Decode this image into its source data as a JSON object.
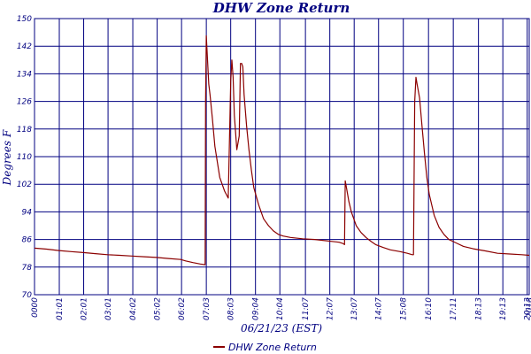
{
  "chart_data": {
    "type": "line",
    "title": "DHW Zone Return",
    "xlabel": "06/21/23 (EST)",
    "ylabel": "Degrees F",
    "ylim": [
      70,
      150
    ],
    "yticks": [
      70,
      78,
      86,
      94,
      102,
      110,
      118,
      126,
      134,
      142,
      150
    ],
    "x_tick_labels": [
      "0000",
      "01:01",
      "02:01",
      "03:01",
      "04:02",
      "05:02",
      "06:02",
      "07:03",
      "08:03",
      "09:04",
      "10:04",
      "11:07",
      "12:07",
      "13:07",
      "14:07",
      "15:08",
      "16:10",
      "17:11",
      "18:13",
      "19:13",
      "20:13",
      "2018"
    ],
    "x_tick_hours": [
      0,
      1.017,
      2.017,
      3.017,
      4.033,
      5.033,
      6.033,
      7.05,
      8.05,
      9.067,
      10.067,
      11.117,
      12.117,
      13.117,
      14.117,
      15.133,
      16.167,
      17.183,
      18.217,
      19.217,
      20.217,
      20.3
    ],
    "grid": true,
    "legend_position": "bottom-center",
    "series": [
      {
        "name": "DHW Zone Return",
        "color": "#8b0000",
        "x_hours": [
          0,
          0.5,
          1,
          1.5,
          2,
          2.5,
          3,
          3.5,
          4,
          4.5,
          5,
          5.5,
          6,
          6.2,
          6.5,
          6.8,
          7.0,
          7.02,
          7.05,
          7.1,
          7.15,
          7.2,
          7.3,
          7.4,
          7.6,
          7.8,
          7.95,
          8.05,
          8.1,
          8.15,
          8.2,
          8.3,
          8.4,
          8.45,
          8.5,
          8.55,
          8.6,
          8.7,
          8.8,
          8.9,
          9.0,
          9.2,
          9.4,
          9.6,
          9.8,
          10.0,
          10.2,
          10.5,
          11.0,
          11.5,
          12.0,
          12.5,
          12.67,
          12.72,
          12.75,
          12.8,
          12.9,
          13.0,
          13.2,
          13.4,
          13.6,
          13.8,
          14.0,
          14.3,
          14.6,
          15.0,
          15.3,
          15.5,
          15.55,
          15.6,
          15.65,
          15.7,
          15.8,
          15.9,
          16.0,
          16.1,
          16.2,
          16.4,
          16.6,
          16.8,
          17.0,
          17.3,
          17.6,
          18.0,
          18.5,
          19.0,
          19.5,
          20.0,
          20.3
        ],
        "values": [
          83.5,
          83.2,
          82.8,
          82.5,
          82.2,
          81.9,
          81.6,
          81.4,
          81.2,
          81.0,
          80.8,
          80.5,
          80.2,
          79.8,
          79.3,
          78.9,
          78.7,
          126,
          145,
          138,
          131,
          128,
          121,
          113,
          104,
          100,
          98,
          132,
          138,
          133,
          122,
          112,
          116,
          137,
          137,
          136,
          128,
          119,
          112,
          106,
          101,
          96,
          92,
          90,
          88.5,
          87.5,
          87,
          86.6,
          86.2,
          86,
          85.6,
          85.2,
          84.8,
          84.5,
          103,
          101,
          97,
          94,
          90,
          88,
          86.6,
          85.5,
          84.5,
          83.7,
          83,
          82.5,
          82,
          81.6,
          81.6,
          126,
          133,
          131,
          127,
          119,
          111,
          104,
          99,
          93,
          89.5,
          87.5,
          86,
          85,
          84,
          83.3,
          82.7,
          82,
          81.8,
          81.6,
          81.4
        ]
      }
    ]
  }
}
